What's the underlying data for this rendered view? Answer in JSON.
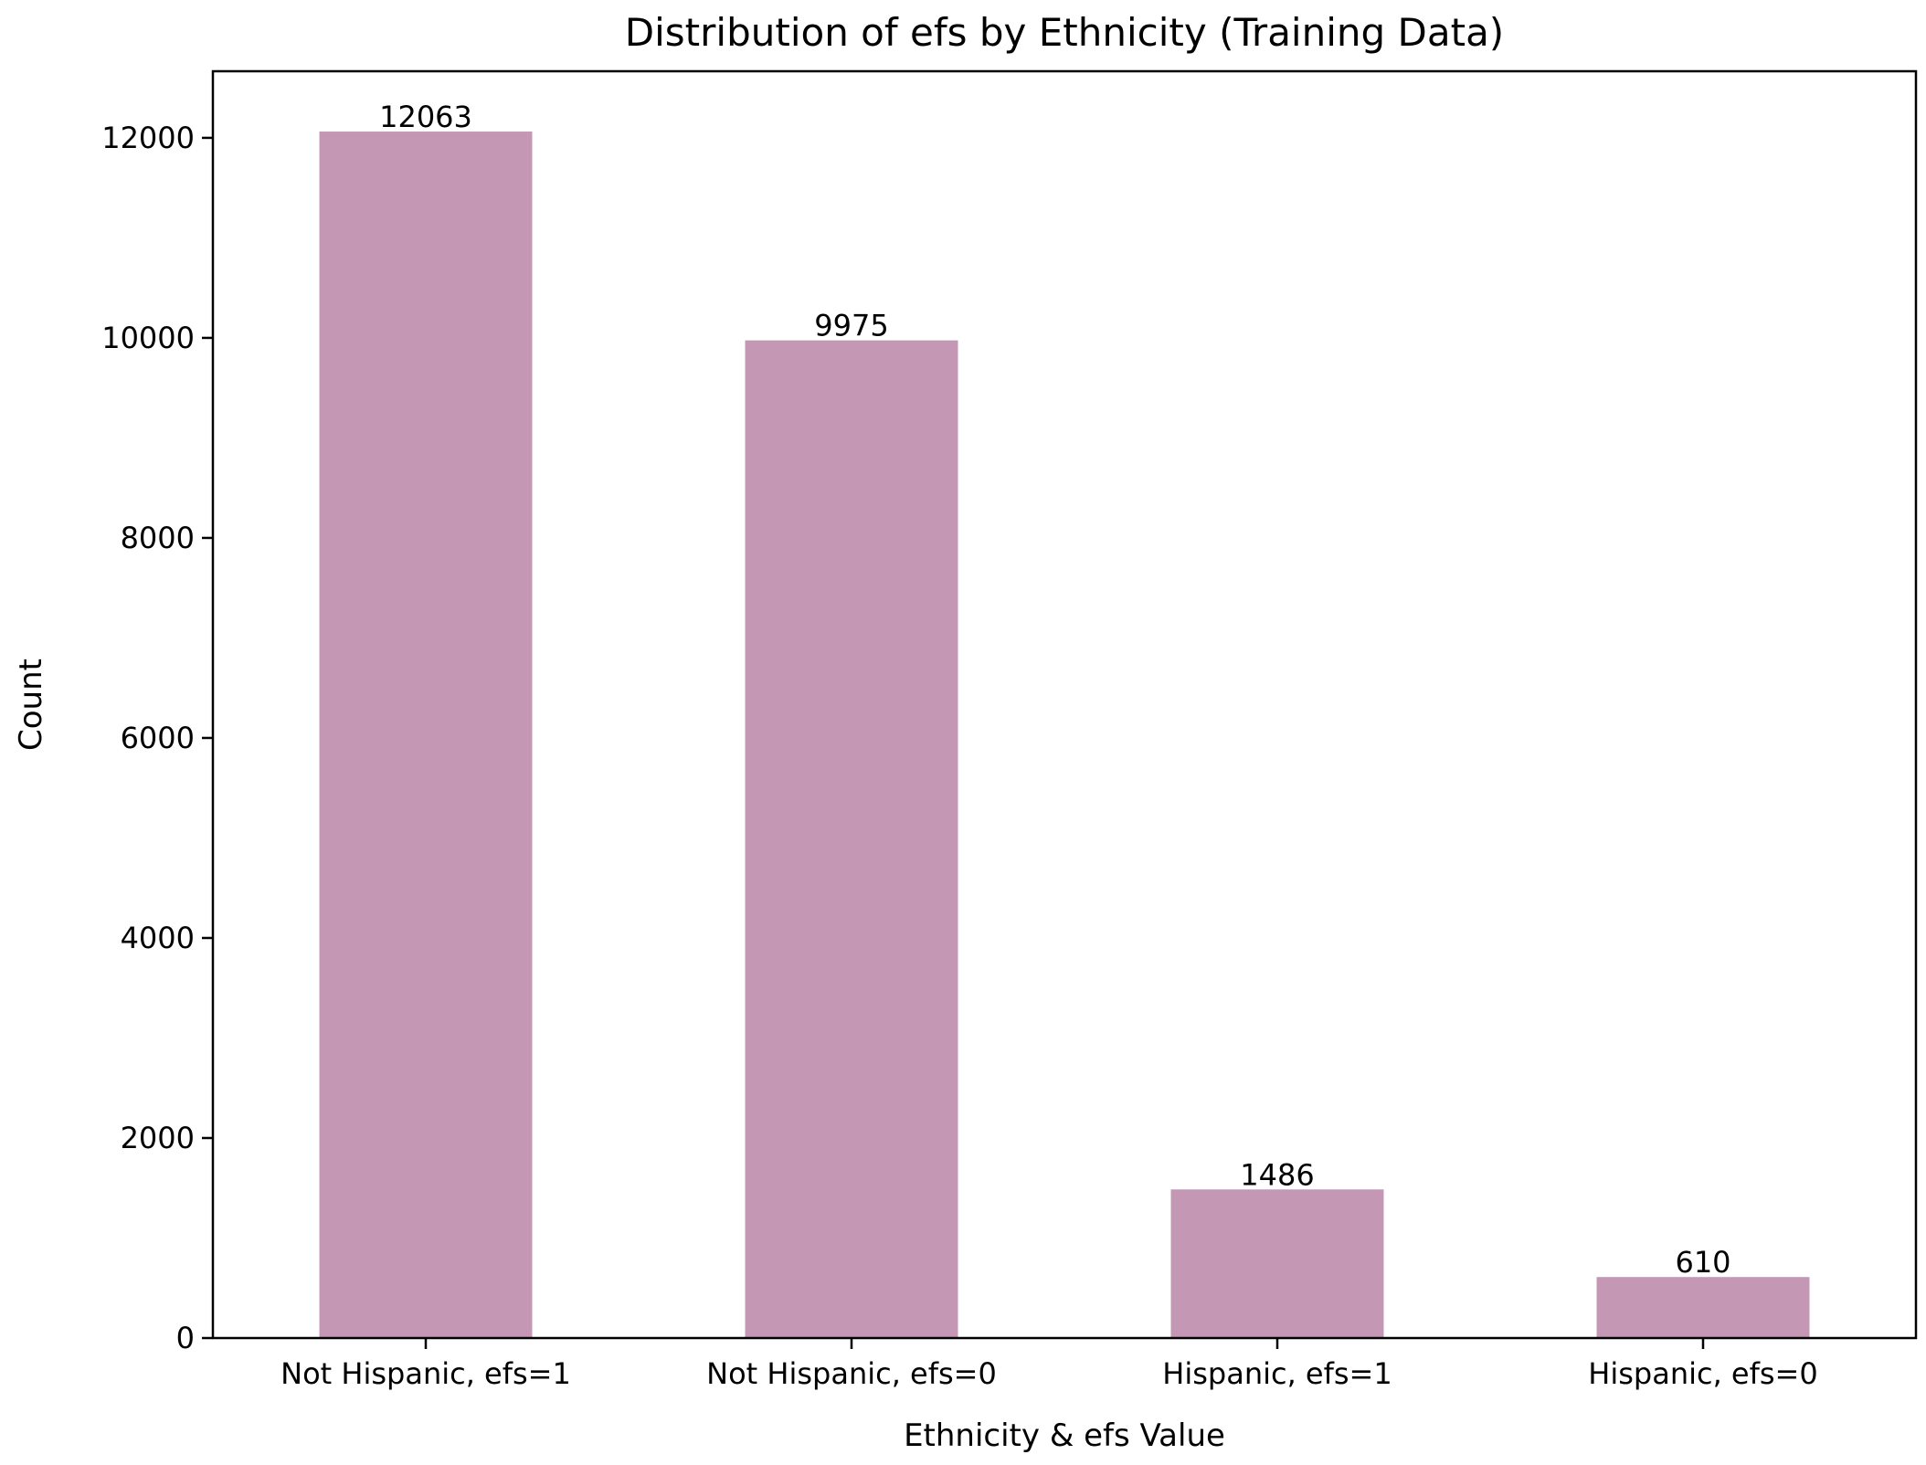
{
  "chart_data": {
    "type": "bar",
    "title": "Distribution of efs by Ethnicity (Training Data)",
    "xlabel": "Ethnicity & efs Value",
    "ylabel": "Count",
    "categories": [
      "Not Hispanic, efs=1",
      "Not Hispanic, efs=0",
      "Hispanic, efs=1",
      "Hispanic, efs=0"
    ],
    "values": [
      12063,
      9975,
      1486,
      610
    ],
    "data_labels": [
      "12063",
      "9975",
      "1486",
      "610"
    ],
    "yticks": [
      0,
      2000,
      4000,
      6000,
      8000,
      10000,
      12000
    ],
    "ylim": [
      0,
      12666
    ],
    "bar_color": "#c497b5",
    "grid": false,
    "legend": "none"
  }
}
